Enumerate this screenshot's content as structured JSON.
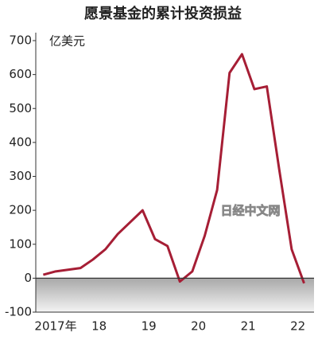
{
  "chart_data": {
    "type": "line",
    "title": "愿景基金的累计投资损益",
    "y_label": "亿美元",
    "watermark": "日经中文网",
    "x": [
      0,
      1,
      2,
      3,
      4,
      5,
      6,
      7,
      8,
      9,
      10,
      11,
      12,
      13,
      14,
      15,
      16,
      17,
      18,
      19,
      20,
      21
    ],
    "series": [
      {
        "color": "#a61e35",
        "values": [
          10,
          20,
          25,
          30,
          55,
          85,
          130,
          165,
          200,
          115,
          95,
          -10,
          20,
          125,
          260,
          605,
          660,
          557,
          565,
          320,
          85,
          -15
        ]
      }
    ],
    "xlim": [
      -0.6,
      21.8
    ],
    "xticks": [
      {
        "value": 1,
        "label": "2017年"
      },
      {
        "value": 4.5,
        "label": "18"
      },
      {
        "value": 8.5,
        "label": "19"
      },
      {
        "value": 12.5,
        "label": "20"
      },
      {
        "value": 16.5,
        "label": "21"
      },
      {
        "value": 20.5,
        "label": "22"
      }
    ],
    "ylim": [
      -100,
      700
    ],
    "yticks": [
      -100,
      0,
      100,
      200,
      300,
      400,
      500,
      600,
      700
    ],
    "grid": false
  }
}
